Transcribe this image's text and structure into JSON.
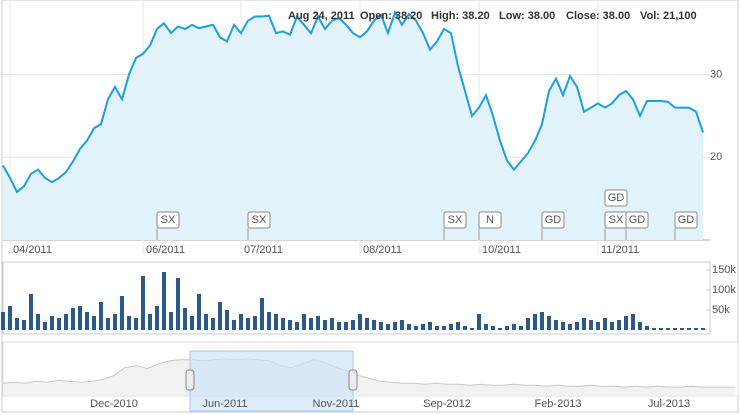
{
  "tooltip": {
    "date": "Aug 24, 2011",
    "items": [
      "Open: 38.20",
      "High: 38.20",
      "Low: 38.00",
      "Close: 38.00",
      "Vol: 21,100"
    ]
  },
  "chart_data": [
    {
      "type": "line",
      "color": "#1aa0dc",
      "fill": "#e3f3fb",
      "categories": [
        null,
        "04/2011",
        null,
        null,
        null,
        null,
        null,
        null,
        null,
        null,
        null,
        null,
        null,
        null,
        null,
        null,
        null,
        null,
        null,
        null,
        "06/2011",
        null,
        null,
        null,
        null,
        null,
        null,
        null,
        null,
        null,
        null,
        null,
        null,
        null,
        "07/2011",
        null,
        null,
        null,
        null,
        null,
        null,
        null,
        null,
        null,
        null,
        null,
        null,
        null,
        null,
        null,
        null,
        "08/2011",
        null,
        null,
        null,
        null,
        null,
        null,
        null,
        null,
        null,
        null,
        null,
        null,
        null,
        null,
        null,
        null,
        "10/2011",
        null,
        null,
        null,
        null,
        null,
        null,
        null,
        null,
        null,
        null,
        null,
        null,
        null,
        null,
        null,
        null,
        "11/2011",
        null,
        null,
        null,
        null,
        null,
        null,
        null,
        null,
        null,
        null,
        null,
        null,
        null,
        null,
        null
      ],
      "values": [
        19.0,
        17.5,
        15.8,
        16.5,
        18.0,
        18.5,
        17.5,
        17.0,
        17.5,
        18.2,
        19.5,
        21.0,
        22.0,
        23.5,
        24.0,
        27.0,
        28.5,
        27.0,
        30.0,
        32.0,
        32.5,
        33.5,
        35.5,
        36.2,
        35.0,
        35.8,
        35.5,
        36.0,
        35.6,
        35.8,
        36.0,
        34.5,
        34.0,
        36.0,
        35.0,
        36.5,
        37.0,
        37.0,
        37.1,
        35.0,
        35.2,
        34.8,
        37.0,
        36.0,
        35.0,
        37.0,
        35.5,
        36.5,
        36.8,
        36.0,
        35.0,
        34.5,
        35.2,
        36.5,
        37.2,
        35.0,
        37.5,
        36.0,
        37.3,
        36.5,
        35.0,
        33.0,
        34.0,
        35.5,
        35.0,
        31.0,
        28.0,
        25.0,
        26.0,
        27.5,
        25.0,
        22.0,
        19.6,
        18.5,
        19.5,
        20.5,
        22.0,
        24.0,
        28.0,
        29.5,
        27.5,
        29.8,
        28.5,
        25.5,
        26.0,
        26.5,
        26.0,
        26.5,
        27.5,
        28.0,
        27.0,
        25.0,
        26.8,
        26.8,
        26.8,
        26.7,
        26.0,
        26.0,
        26.0,
        25.5,
        23.0
      ],
      "ylim": [
        10,
        39
      ],
      "yticks": [
        20,
        30
      ],
      "grid": true,
      "flags": [
        {
          "label": "SX",
          "index": 22
        },
        {
          "label": "SX",
          "index": 35
        },
        {
          "label": "SX",
          "index": 63
        },
        {
          "label": "N",
          "index": 68
        },
        {
          "label": "GD",
          "index": 77
        },
        {
          "label": "SX",
          "index": 86
        },
        {
          "label": "GD",
          "index": 86
        },
        {
          "label": "GD",
          "index": 89
        },
        {
          "label": "GD",
          "index": 96
        }
      ]
    },
    {
      "type": "bar",
      "color": "#2b5a8a",
      "values": [
        45000,
        60000,
        30000,
        25000,
        90000,
        40000,
        20000,
        35000,
        30000,
        40000,
        55000,
        60000,
        45000,
        35000,
        70000,
        30000,
        40000,
        85000,
        35000,
        30000,
        135000,
        40000,
        60000,
        145000,
        45000,
        130000,
        55000,
        35000,
        90000,
        40000,
        30000,
        70000,
        50000,
        25000,
        40000,
        30000,
        35000,
        80000,
        45000,
        40000,
        30000,
        25000,
        20000,
        40000,
        30000,
        35000,
        25000,
        30000,
        20000,
        20000,
        25000,
        40000,
        30000,
        25000,
        20000,
        15000,
        20000,
        25000,
        15000,
        10000,
        15000,
        20000,
        10000,
        10000,
        15000,
        20000,
        10000,
        5000,
        40000,
        15000,
        10000,
        5000,
        10000,
        15000,
        10000,
        30000,
        40000,
        45000,
        35000,
        25000,
        20000,
        15000,
        20000,
        30000,
        25000,
        20000,
        30000,
        20000,
        25000,
        35000,
        40000,
        20000,
        10000,
        5000,
        5000,
        5000,
        5000,
        5000,
        5000,
        5000,
        5000
      ],
      "ylim": [
        0,
        170000
      ],
      "yticks": [
        {
          "value": 50000,
          "label": "50k"
        },
        {
          "value": 100000,
          "label": "100k"
        },
        {
          "value": 150000,
          "label": "150k"
        }
      ]
    },
    {
      "type": "area",
      "color": "#c8c8c8",
      "categories": [
        null,
        null,
        null,
        null,
        null,
        null,
        null,
        null,
        null,
        null,
        "Dec-2010",
        null,
        null,
        null,
        null,
        null,
        null,
        null,
        null,
        null,
        "Jun-2011",
        null,
        null,
        null,
        null,
        null,
        null,
        null,
        null,
        null,
        "Nov-2011",
        null,
        null,
        null,
        null,
        null,
        null,
        null,
        null,
        null,
        "Sep-2012",
        null,
        null,
        null,
        null,
        null,
        null,
        null,
        null,
        null,
        "Feb-2013",
        null,
        null,
        null,
        null,
        null,
        null,
        null,
        null,
        null,
        "Jul-2013",
        null,
        null,
        null,
        null,
        null,
        null
      ],
      "values": [
        12,
        13,
        12,
        14,
        13,
        15,
        14,
        13,
        14,
        16,
        20,
        28,
        30,
        27,
        32,
        35,
        36,
        36,
        35,
        36,
        37,
        36,
        37,
        36,
        35,
        30,
        28,
        32,
        36,
        33,
        28,
        25,
        20,
        17,
        14,
        13,
        12,
        12,
        11,
        12,
        11,
        11,
        10,
        11,
        10,
        10,
        11,
        10,
        10,
        9,
        10,
        9,
        9,
        10,
        9,
        9,
        8,
        9,
        8,
        9,
        8,
        8,
        9,
        8,
        8,
        8,
        8
      ],
      "ylim": [
        0,
        45
      ]
    }
  ]
}
